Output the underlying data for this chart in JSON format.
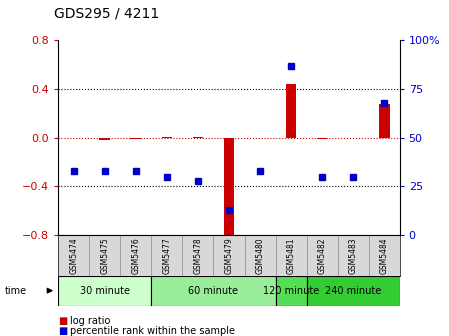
{
  "title": "GDS295 / 4211",
  "samples": [
    "GSM5474",
    "GSM5475",
    "GSM5476",
    "GSM5477",
    "GSM5478",
    "GSM5479",
    "GSM5480",
    "GSM5481",
    "GSM5482",
    "GSM5483",
    "GSM5484"
  ],
  "log_ratio": [
    0.0,
    -0.02,
    -0.01,
    0.01,
    0.01,
    -0.85,
    0.0,
    0.44,
    -0.01,
    0.0,
    0.28
  ],
  "percentile_rank": [
    33,
    33,
    33,
    30,
    28,
    13,
    33,
    87,
    30,
    30,
    68
  ],
  "ylim_left": [
    -0.8,
    0.8
  ],
  "ylim_right": [
    0,
    100
  ],
  "yticks_left": [
    -0.8,
    -0.4,
    0.0,
    0.4,
    0.8
  ],
  "yticks_right": [
    0,
    25,
    50,
    75,
    100
  ],
  "ytick_right_labels": [
    "0",
    "25",
    "50",
    "75",
    "100%"
  ],
  "groups": [
    {
      "label": "30 minute",
      "start": 0,
      "end": 2,
      "color": "#ccffcc"
    },
    {
      "label": "60 minute",
      "start": 3,
      "end": 6,
      "color": "#99ee99"
    },
    {
      "label": "120 minute",
      "start": 7,
      "end": 7,
      "color": "#55dd55"
    },
    {
      "label": "240 minute",
      "start": 8,
      "end": 10,
      "color": "#33cc33"
    }
  ],
  "log_ratio_color": "#cc0000",
  "percentile_color": "#0000cc",
  "zero_line_color": "#cc0000",
  "dotted_line_color": "#000000",
  "bar_width": 0.35,
  "marker_size": 5,
  "gsm_bg_color": "#d8d8d8",
  "gsm_divider_color": "#888888"
}
